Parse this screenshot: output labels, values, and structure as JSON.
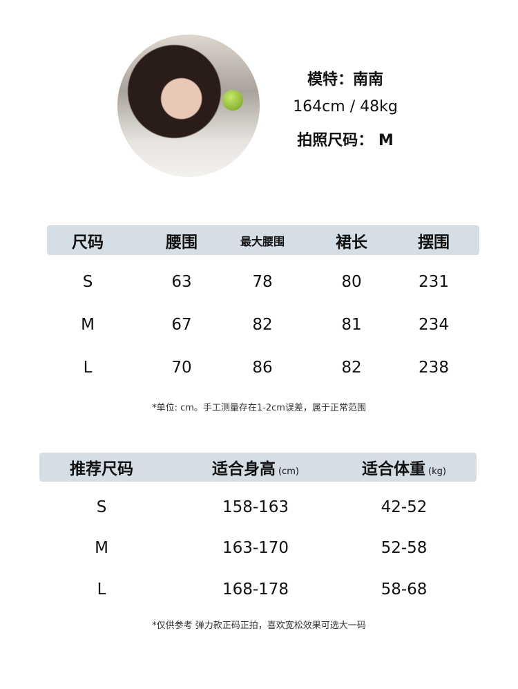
{
  "model": {
    "name_line": "模特：南南",
    "measure_line": "164cm / 48kg",
    "size_line": "拍照尺码：  M"
  },
  "size_table": {
    "headers": [
      "尺码",
      "腰围",
      "最大腰围",
      "裙长",
      "摆围"
    ],
    "rows": [
      [
        "S",
        "63",
        "78",
        "80",
        "231"
      ],
      [
        "M",
        "67",
        "82",
        "81",
        "234"
      ],
      [
        "L",
        "70",
        "86",
        "82",
        "238"
      ]
    ],
    "note": "*单位: cm。手工测量存在1-2cm误差，属于正常范围"
  },
  "rec_table": {
    "headers": [
      "推荐尺码",
      "适合身高",
      "适合体重"
    ],
    "units": [
      "",
      "(cm)",
      "(kg)"
    ],
    "rows": [
      [
        "S",
        "158-163",
        "42-52"
      ],
      [
        "M",
        "163-170",
        "52-58"
      ],
      [
        "L",
        "168-178",
        "58-68"
      ]
    ],
    "note": "*仅供参考 弹力款正码正拍，喜欢宽松效果可选大一码"
  },
  "colors": {
    "header_bar": "#d6dee5"
  }
}
